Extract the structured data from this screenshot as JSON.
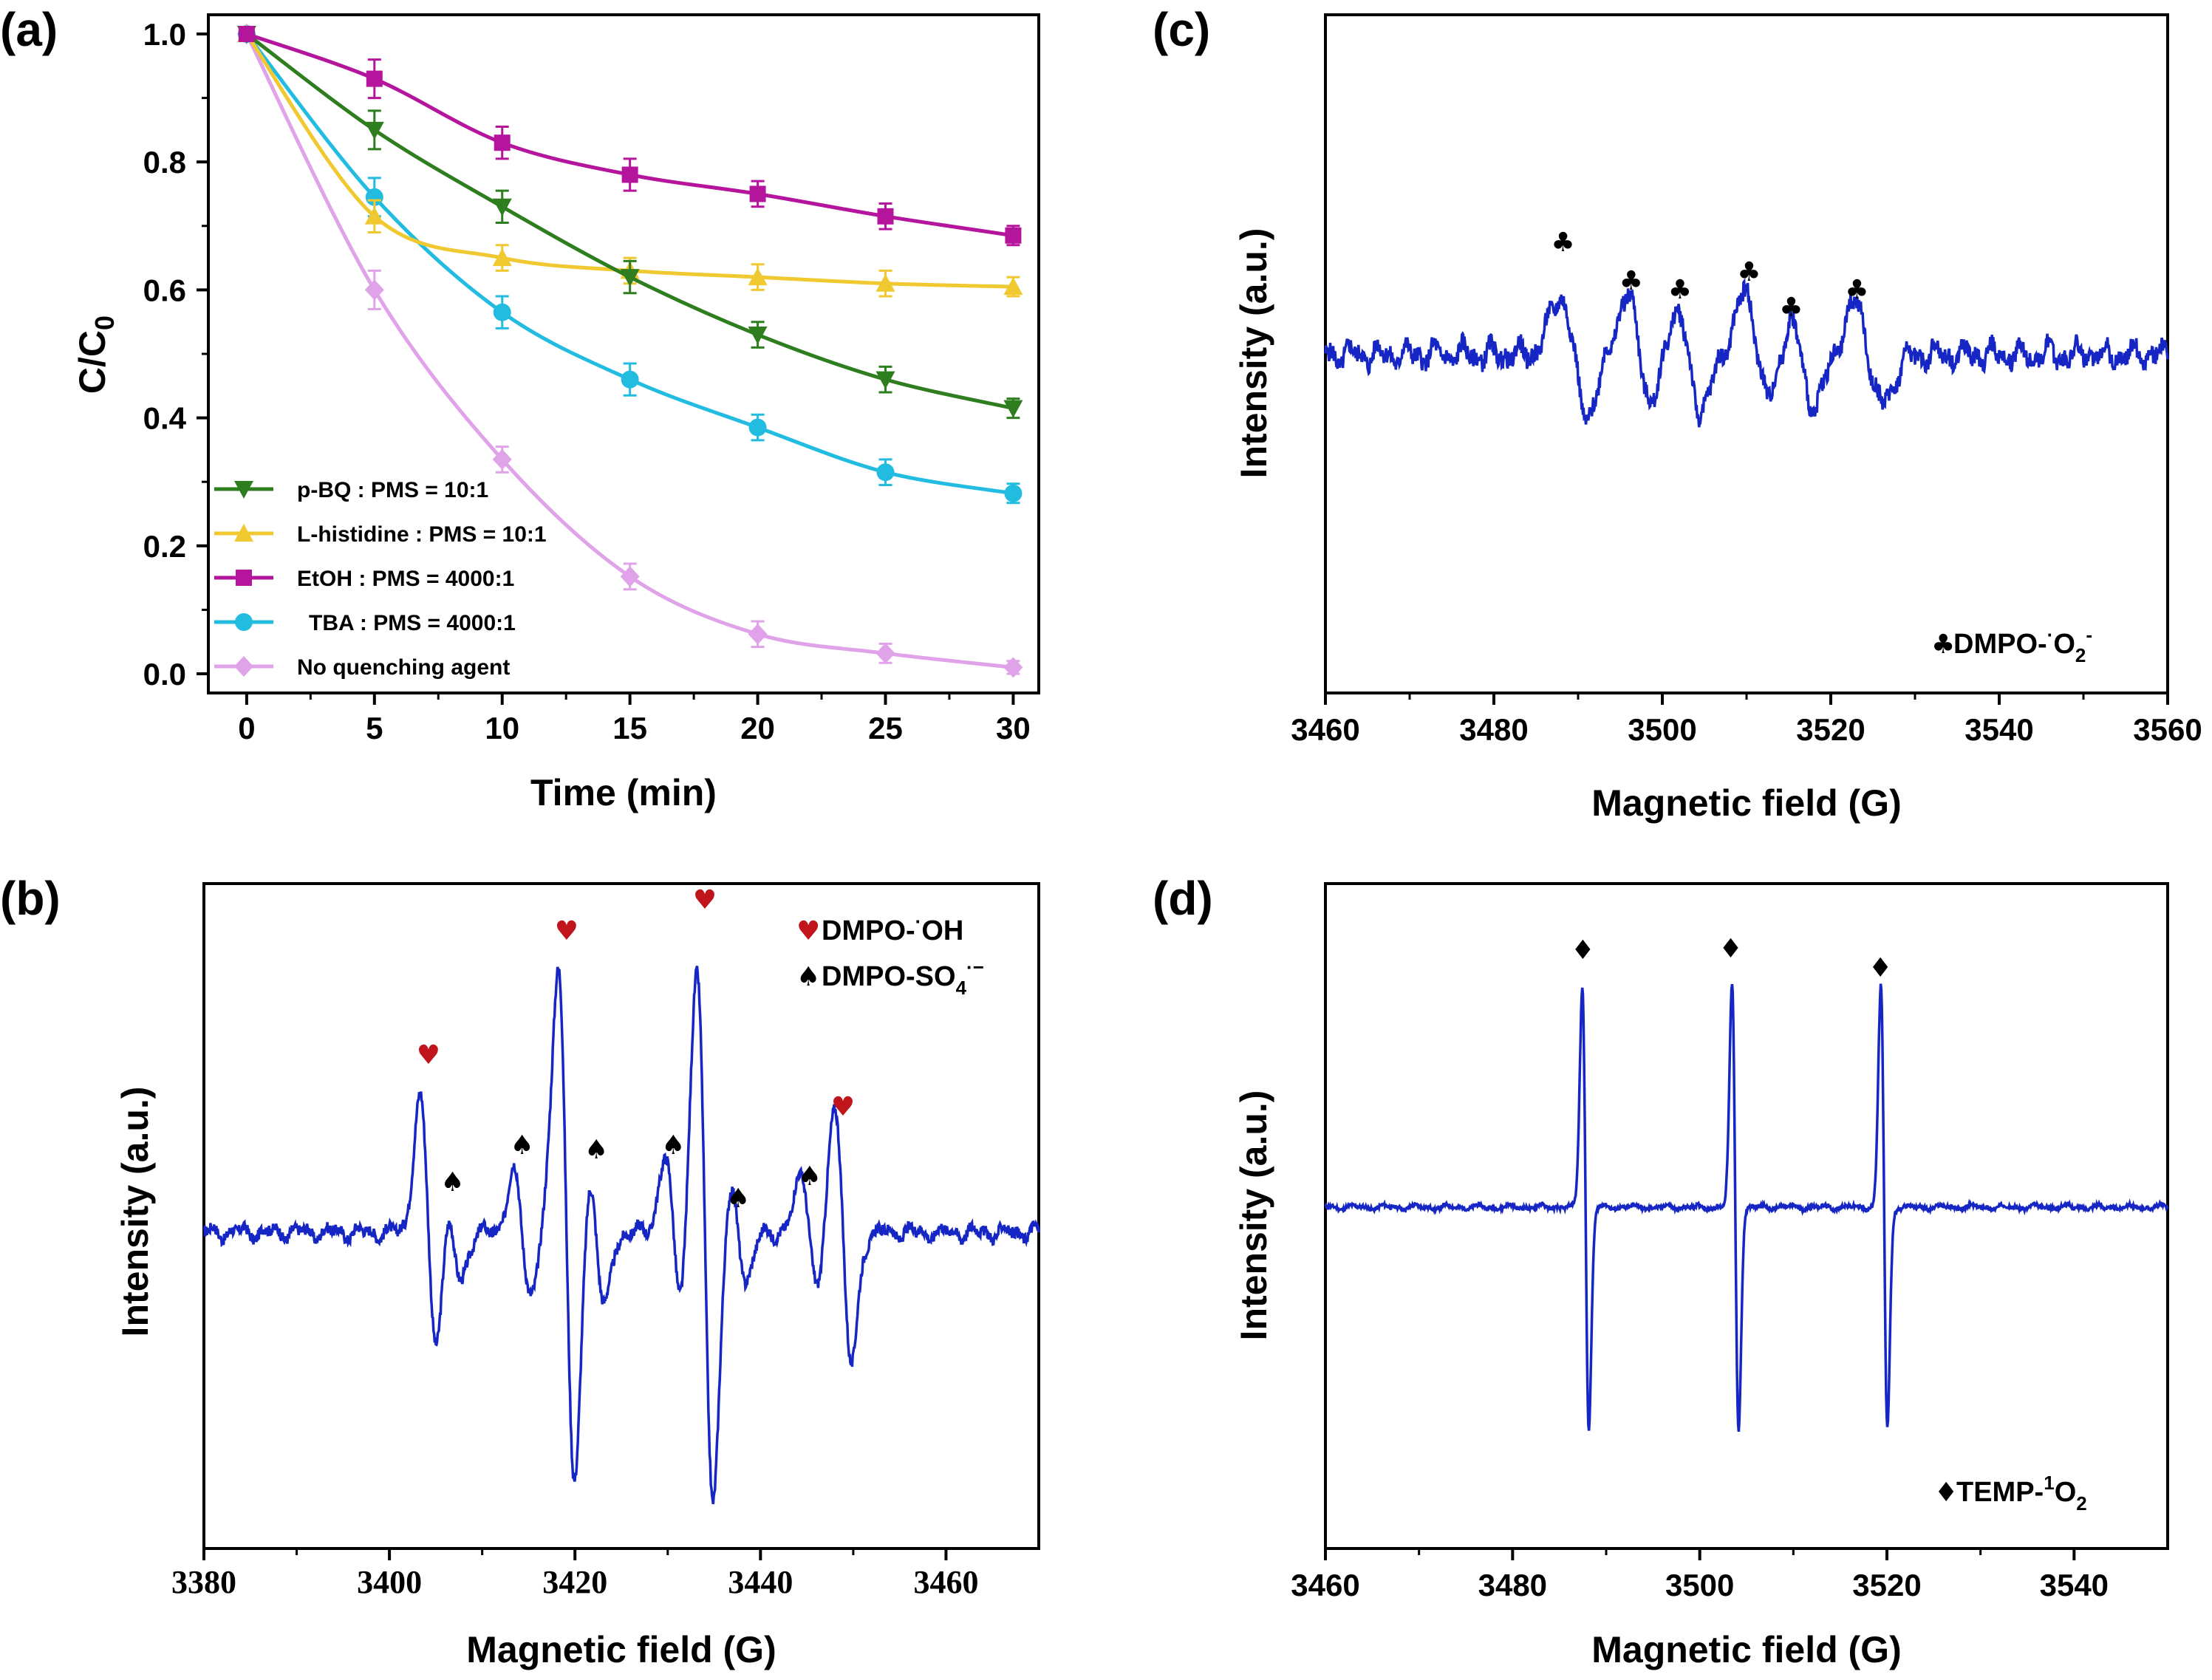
{
  "panels": {
    "a": {
      "label": "(a)"
    },
    "b": {
      "label": "(b)"
    },
    "c": {
      "label": "(c)"
    },
    "d": {
      "label": "(d)"
    }
  },
  "chart_data": [
    {
      "panel": "(a)",
      "type": "line",
      "xlabel": "Time (min)",
      "ylabel": "C/C0",
      "ylabel_main": "C/C",
      "ylabel_sub": "0",
      "xlim": [
        -1.5,
        31
      ],
      "ylim": [
        -0.03,
        1.03
      ],
      "xticks": [
        0,
        5,
        10,
        15,
        20,
        25,
        30
      ],
      "yticks": [
        0.0,
        0.2,
        0.4,
        0.6,
        0.8,
        1.0
      ],
      "ytick_labels": [
        "0.0",
        "0.2",
        "0.4",
        "0.6",
        "0.8",
        "1.0"
      ],
      "legend_position": "bottom-left",
      "x": [
        0,
        5,
        10,
        15,
        20,
        25,
        30
      ],
      "series": [
        {
          "name": "p-BQ : PMS = 10:1",
          "marker": "triangle-down",
          "color": "#2e7d1e",
          "values": [
            1.0,
            0.85,
            0.73,
            0.62,
            0.53,
            0.46,
            0.415
          ],
          "errors": [
            0.01,
            0.03,
            0.025,
            0.025,
            0.02,
            0.02,
            0.015
          ]
        },
        {
          "name": "L-histidine : PMS = 10:1",
          "marker": "triangle-up",
          "color": "#f0c830",
          "values": [
            1.0,
            0.715,
            0.65,
            0.63,
            0.62,
            0.61,
            0.605
          ],
          "errors": [
            0.01,
            0.025,
            0.02,
            0.02,
            0.02,
            0.02,
            0.015
          ]
        },
        {
          "name": "EtOH : PMS = 4000:1",
          "marker": "square",
          "color": "#b5159c",
          "values": [
            1.0,
            0.93,
            0.83,
            0.78,
            0.75,
            0.715,
            0.685
          ],
          "errors": [
            0.01,
            0.03,
            0.025,
            0.025,
            0.02,
            0.02,
            0.015
          ]
        },
        {
          "name": "TBA : PMS = 4000:1",
          "marker": "circle",
          "color": "#22bce0",
          "values": [
            1.0,
            0.745,
            0.565,
            0.46,
            0.385,
            0.315,
            0.282
          ],
          "errors": [
            0.01,
            0.03,
            0.025,
            0.025,
            0.02,
            0.02,
            0.015
          ]
        },
        {
          "name": "No quenching agent",
          "marker": "diamond",
          "color": "#e0a2e8",
          "values": [
            1.0,
            0.6,
            0.335,
            0.152,
            0.062,
            0.032,
            0.01
          ],
          "errors": [
            0.01,
            0.03,
            0.02,
            0.02,
            0.02,
            0.015,
            0.01
          ]
        }
      ]
    },
    {
      "panel": "(b)",
      "type": "line",
      "xlabel": "Magnetic field (G)",
      "ylabel": "Intensity (a.u.)",
      "xlim": [
        3380,
        3470
      ],
      "xticks": [
        3380,
        3400,
        3420,
        3440,
        3460
      ],
      "line_color": "#1626c4",
      "spectrum": {
        "baseline": 0,
        "lines": [
          {
            "x": 3404.2,
            "a": 1.0
          },
          {
            "x": 3419.1,
            "a": 2.0
          },
          {
            "x": 3434.0,
            "a": 2.0
          },
          {
            "x": 3448.9,
            "a": 1.0
          },
          {
            "x": 3406.8,
            "a": 0.35
          },
          {
            "x": 3414.3,
            "a": 0.45
          },
          {
            "x": 3422.3,
            "a": 0.55
          },
          {
            "x": 3430.6,
            "a": 0.55
          },
          {
            "x": 3437.6,
            "a": 0.35
          },
          {
            "x": 3445.3,
            "a": 0.45
          }
        ],
        "linewidth": 0.9
      },
      "legend": [
        {
          "symbol": "♥",
          "symbol_color": "#c0151a",
          "label": "DMPO-·OH"
        },
        {
          "symbol": "♠",
          "symbol_color": "#000000",
          "label": "DMPO-SO4·−"
        }
      ],
      "legend_text": {
        "oh": "DMPO-",
        "oh_sup": "·",
        "oh_tail": "OH",
        "so4": "DMPO-SO",
        "so4_sub": "4",
        "so4_sup": "·−"
      },
      "markers_heart_x": [
        3404.2,
        3419.1,
        3434.0,
        3448.9
      ],
      "markers_spade_x": [
        3406.8,
        3414.3,
        3422.3,
        3430.6,
        3437.6,
        3445.3
      ]
    },
    {
      "panel": "(c)",
      "type": "line",
      "xlabel": "Magnetic field (G)",
      "ylabel": "Intensity (a.u.)",
      "xlim": [
        3460,
        3560
      ],
      "xticks": [
        3460,
        3480,
        3500,
        3520,
        3540,
        3560
      ],
      "line_color": "#1626c4",
      "spectrum": {
        "lines": [
          {
            "x": 3489.5,
            "a": 1.0
          },
          {
            "x": 3497.4,
            "a": 0.95
          },
          {
            "x": 3503.0,
            "a": 0.9
          },
          {
            "x": 3511.4,
            "a": 1.0
          },
          {
            "x": 3516.4,
            "a": 0.85
          },
          {
            "x": 3524.5,
            "a": 0.85
          }
        ],
        "linewidth": 1.6
      },
      "markers_club_x": [
        3488.2,
        3496.3,
        3502.1,
        3510.3,
        3515.3,
        3523.1
      ],
      "legend": [
        {
          "symbol": "♣",
          "label": "DMPO-·O2−"
        }
      ],
      "legend_text": {
        "main": "DMPO-",
        "sup1": "·",
        "o": "O",
        "sub": "2",
        "sup2": "-"
      }
    },
    {
      "panel": "(d)",
      "type": "line",
      "xlabel": "Magnetic field (G)",
      "ylabel": "Intensity (a.u.)",
      "xlim": [
        3460,
        3550
      ],
      "xticks": [
        3460,
        3480,
        3500,
        3520,
        3540
      ],
      "line_color": "#1626c4",
      "spectrum": {
        "lines": [
          {
            "x": 3487.8,
            "a": 1.0
          },
          {
            "x": 3503.8,
            "a": 1.0
          },
          {
            "x": 3519.7,
            "a": 1.0
          }
        ],
        "linewidth": 0.35
      },
      "markers_diamond_x": [
        3487.5,
        3503.3,
        3519.3
      ],
      "legend": [
        {
          "symbol": "♦",
          "label": "TEMP-1O2"
        }
      ],
      "legend_text": {
        "main": "TEMP-",
        "sup": "1",
        "o": "O",
        "sub": "2"
      }
    }
  ]
}
